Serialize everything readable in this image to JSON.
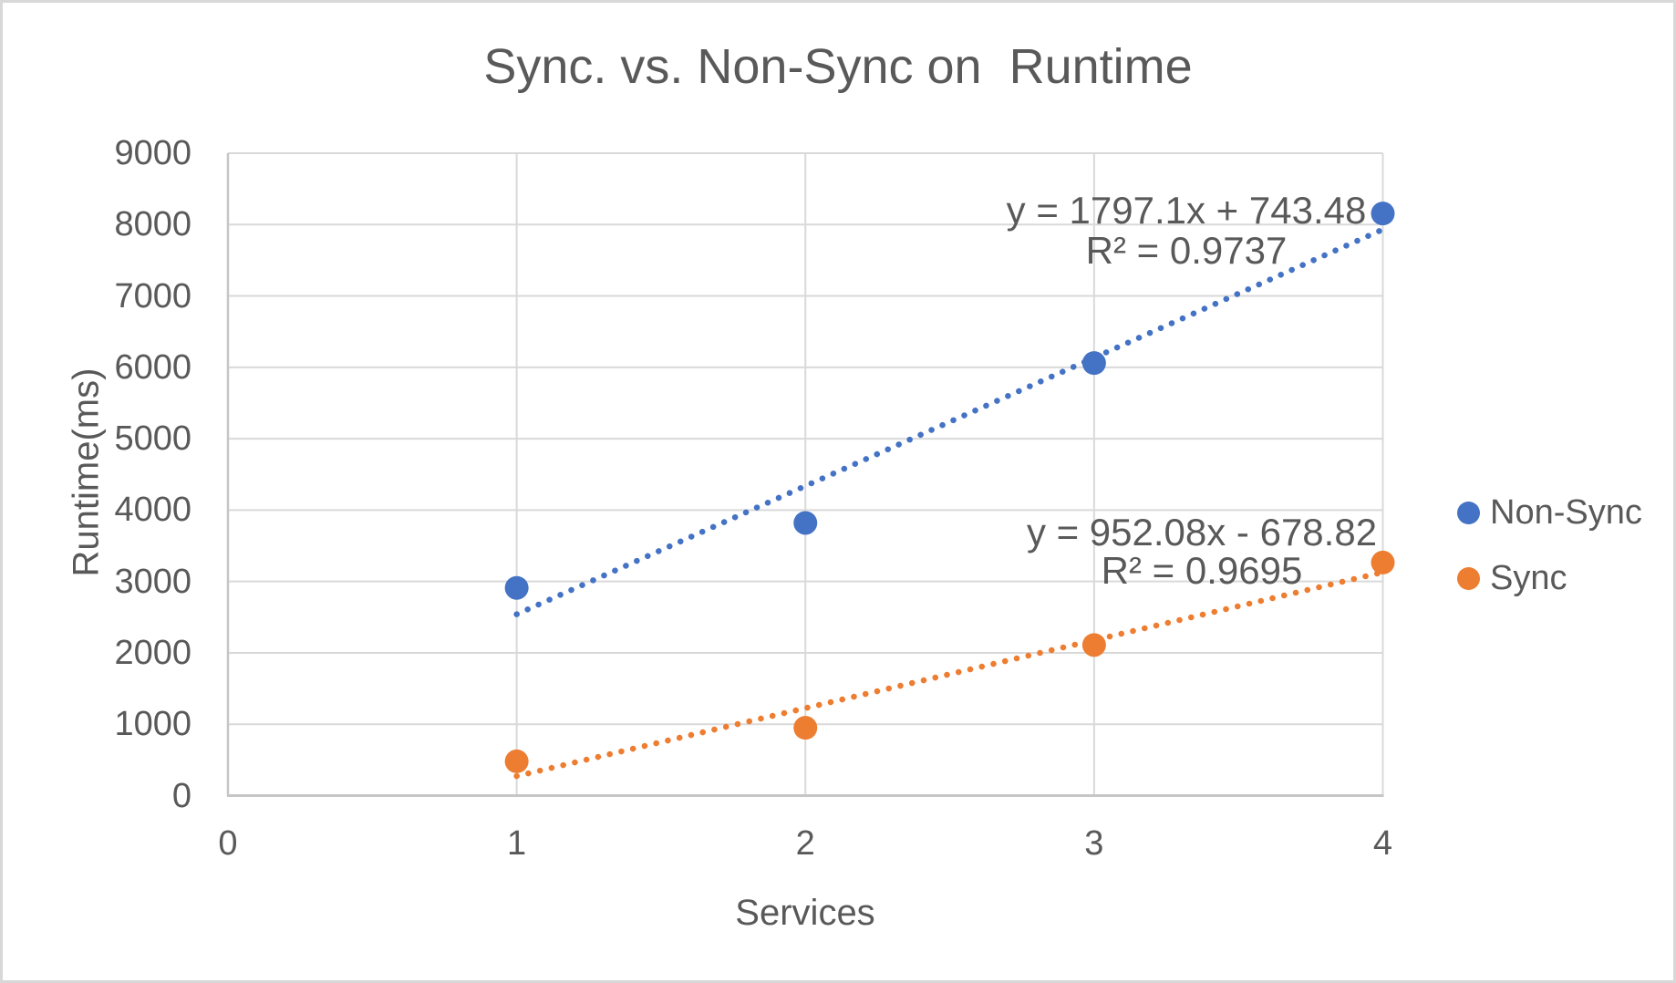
{
  "chart_data": {
    "type": "scatter",
    "title": "Sync. vs. Non-Sync on  Runtime",
    "xlabel": "Services",
    "ylabel": "Runtime(ms)",
    "xlim": [
      0,
      4
    ],
    "ylim": [
      0,
      9000
    ],
    "xticks": [
      0,
      1,
      2,
      3,
      4
    ],
    "yticks": [
      0,
      1000,
      2000,
      3000,
      4000,
      5000,
      6000,
      7000,
      8000,
      9000
    ],
    "grid": true,
    "legend_position": "right",
    "x": [
      1,
      2,
      3,
      4
    ],
    "series": [
      {
        "name": "Non-Sync",
        "color": "#4472C4",
        "values": [
          2910,
          3820,
          6060,
          8155
        ],
        "trendline": {
          "type": "linear",
          "slope": 1797.1,
          "intercept": 743.48,
          "equation": "y = 1797.1x + 743.48",
          "r_squared": "R² = 0.9737"
        }
      },
      {
        "name": "Sync",
        "color": "#ED7D31",
        "values": [
          480,
          950,
          2110,
          3265
        ],
        "trendline": {
          "type": "linear",
          "slope": 952.08,
          "intercept": -678.82,
          "equation": "y = 952.08x - 678.82",
          "r_squared": "R² = 0.9695"
        }
      }
    ],
    "colors": {
      "text": "#595959",
      "gridline": "#D9D9D9",
      "axis_line": "#C6C6C6"
    }
  }
}
